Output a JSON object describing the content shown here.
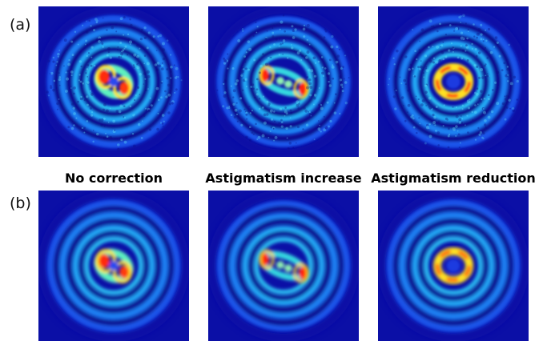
{
  "rows": [
    {
      "label": "(a)"
    },
    {
      "label": "(b)"
    }
  ],
  "captions": [
    "No correction",
    "Astigmatism increase",
    "Astigmatism reduction"
  ]
}
